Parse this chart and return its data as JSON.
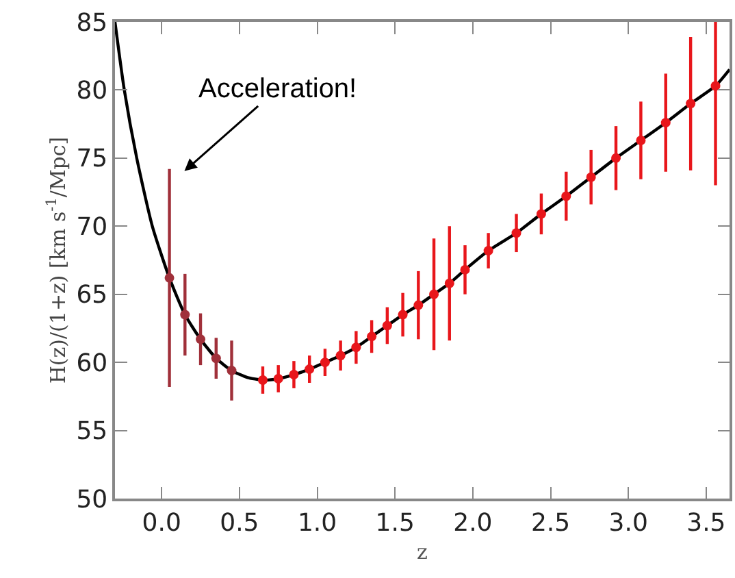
{
  "chart_data": {
    "type": "scatter",
    "xlabel": "z",
    "ylabel": "H(z)/(1+z) [km s$^{-1}$/Mpc]",
    "xlim": [
      -0.3,
      3.65
    ],
    "ylim": [
      50,
      85
    ],
    "xticks": [
      {
        "value": 0,
        "label": "0.0"
      },
      0.5,
      {
        "value": 1,
        "label": "1.0"
      },
      1.5,
      {
        "value": 2,
        "label": "2.0"
      },
      2.5,
      {
        "value": 3,
        "label": "3.0"
      },
      3.5
    ],
    "yticks": [
      50,
      55,
      60,
      65,
      70,
      75,
      80,
      85
    ],
    "marker": "circle",
    "annotations": [
      "Acceleration!"
    ],
    "series": [
      {
        "type": "line",
        "color": "#000000",
        "marker": "none",
        "x": [
          -0.3,
          -0.24,
          -0.16,
          -0.06,
          0.05,
          0.15,
          0.25,
          0.35,
          0.45,
          0.55,
          0.65,
          0.75,
          0.85,
          0.95,
          1.05,
          1.15,
          1.25,
          1.35,
          1.45,
          1.55,
          1.65,
          1.75,
          1.85,
          1.95,
          2.1,
          2.28,
          2.44,
          2.6,
          2.76,
          2.92,
          3.08,
          3.24,
          3.4,
          3.56,
          3.65
        ],
        "values": [
          85,
          80,
          75,
          70,
          66.2,
          63.5,
          61.7,
          60.3,
          59.4,
          58.9,
          58.7,
          58.8,
          59.1,
          59.5,
          60.0,
          60.5,
          61.1,
          61.9,
          62.7,
          63.5,
          64.2,
          65.0,
          65.8,
          66.8,
          68.2,
          69.5,
          70.9,
          72.2,
          73.6,
          75.0,
          76.3,
          77.6,
          79.0,
          80.3,
          81.5
        ]
      },
      {
        "color": "#a0303a",
        "x": [
          0.05,
          0.15,
          0.25,
          0.35,
          0.45
        ],
        "values": [
          66.2,
          63.5,
          61.7,
          60.3,
          59.4
        ],
        "errors": [
          8.0,
          3.0,
          1.9,
          1.5,
          2.2
        ]
      },
      {
        "color": "#e8161b",
        "x": [
          0.65,
          0.75,
          0.85,
          0.95,
          1.05,
          1.15,
          1.25,
          1.35,
          1.45,
          1.55,
          1.65,
          1.75,
          1.85,
          1.95,
          2.1,
          2.28,
          2.44,
          2.6,
          2.76,
          2.92,
          3.08,
          3.24,
          3.4,
          3.56
        ],
        "values": [
          58.7,
          58.8,
          59.1,
          59.5,
          60.0,
          60.5,
          61.1,
          61.9,
          62.7,
          63.5,
          64.2,
          65.0,
          65.8,
          66.8,
          68.2,
          69.5,
          70.9,
          72.2,
          73.6,
          75.0,
          76.3,
          77.6,
          79.0,
          80.3
        ],
        "errors": [
          1.0,
          1.0,
          1.0,
          1.0,
          1.0,
          1.1,
          1.2,
          1.2,
          1.35,
          1.6,
          2.5,
          4.1,
          4.2,
          1.8,
          1.3,
          1.4,
          1.5,
          1.8,
          2.0,
          2.35,
          2.85,
          3.6,
          4.9,
          [
            73.0,
            85
          ]
        ]
      }
    ]
  }
}
